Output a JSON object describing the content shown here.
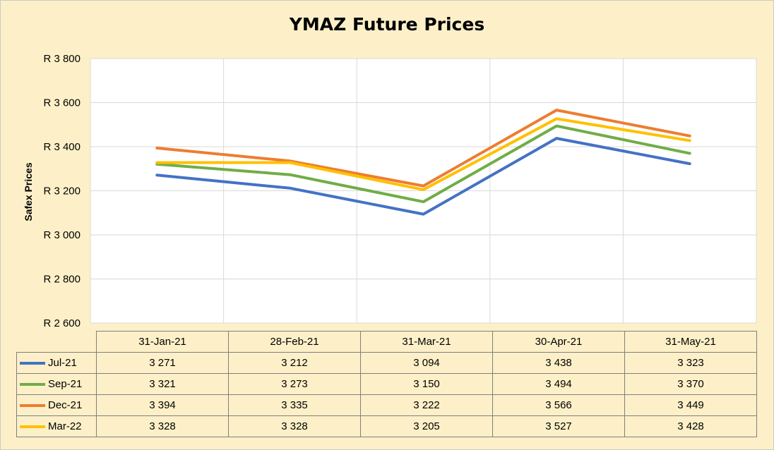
{
  "chart_data": {
    "type": "line",
    "title": "YMAZ Future Prices",
    "ylabel": "Safex Prices",
    "xlabel": "",
    "ylim": [
      2600,
      3800
    ],
    "y_ticks": [
      3800,
      3600,
      3400,
      3200,
      3000,
      2800,
      2600
    ],
    "y_tick_labels": [
      "R 3 800",
      "R 3 600",
      "R 3 400",
      "R 3 200",
      "R 3 000",
      "R 2 800",
      "R 2 600"
    ],
    "grid": true,
    "legend": "data-table",
    "categories": [
      "31-Jan-21",
      "28-Feb-21",
      "31-Mar-21",
      "30-Apr-21",
      "31-May-21"
    ],
    "series": [
      {
        "name": "Jul-21",
        "color": "#4472c4",
        "values": [
          3271,
          3212,
          3094,
          3438,
          3323
        ],
        "labels": [
          "3 271",
          "3 212",
          "3 094",
          "3 438",
          "3 323"
        ]
      },
      {
        "name": "Sep-21",
        "color": "#70ad47",
        "values": [
          3321,
          3273,
          3150,
          3494,
          3370
        ],
        "labels": [
          "3 321",
          "3 273",
          "3 150",
          "3 494",
          "3 370"
        ]
      },
      {
        "name": "Dec-21",
        "color": "#ed7d31",
        "values": [
          3394,
          3335,
          3222,
          3566,
          3449
        ],
        "labels": [
          "3 394",
          "3 335",
          "3 222",
          "3 566",
          "3 449"
        ]
      },
      {
        "name": "Mar-22",
        "color": "#ffc000",
        "values": [
          3328,
          3328,
          3205,
          3527,
          3428
        ],
        "labels": [
          "3 328",
          "3 328",
          "3 205",
          "3 527",
          "3 428"
        ]
      }
    ]
  }
}
